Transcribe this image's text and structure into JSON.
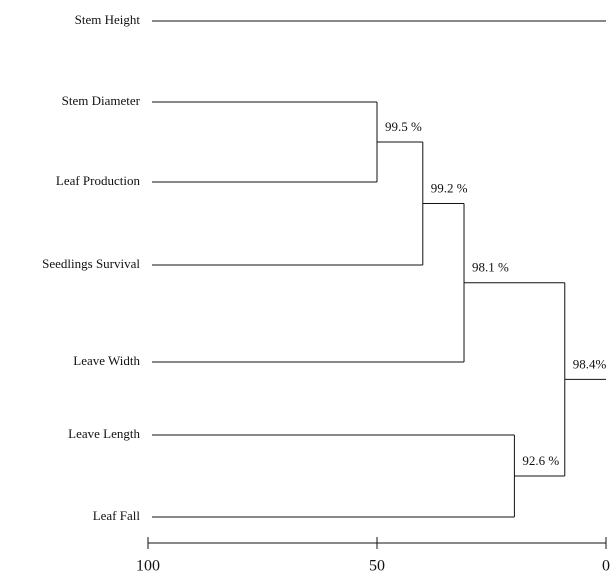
{
  "chart_data": {
    "type": "dendrogram",
    "roots": [
      "Stem Height",
      {
        "height": 9,
        "label": "98.4%",
        "children": [
          {
            "height": 31,
            "label": "98.1 %",
            "children": [
              {
                "height": 40,
                "label": "99.2 %",
                "children": [
                  {
                    "height": 50,
                    "label": "99.5 %",
                    "children": [
                      "Stem Diameter",
                      "Leaf Production"
                    ]
                  },
                  "Seedlings Survival"
                ]
              },
              "Leave Width"
            ]
          },
          {
            "height": 20,
            "label": "92.6 %",
            "children": [
              "Leave Length",
              "Leaf Fall"
            ]
          }
        ]
      }
    ],
    "xlim": [
      100,
      0
    ],
    "xticks": [
      100,
      50,
      0
    ]
  }
}
